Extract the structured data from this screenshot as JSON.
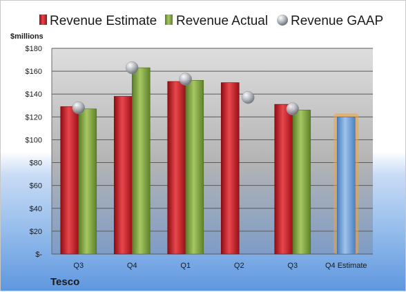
{
  "company": "Tesco",
  "unit_label": "$millions",
  "legend": [
    {
      "label": "Revenue Estimate",
      "color": "#c0171f",
      "icon": "red-square-icon"
    },
    {
      "label": "Revenue Actual",
      "color": "#7ea03c",
      "icon": "green-square-icon"
    },
    {
      "label": "Revenue GAAP",
      "color": "#b8bcc4",
      "icon": "gray-circle-icon"
    }
  ],
  "chart_data": {
    "type": "bar",
    "categories": [
      "Q3",
      "Q4",
      "Q1",
      "Q2",
      "Q3",
      "Q4 Estimate"
    ],
    "series": [
      {
        "name": "Revenue Estimate",
        "values": [
          129,
          138,
          151,
          150,
          131,
          null
        ],
        "color": "#c0171f"
      },
      {
        "name": "Revenue Actual",
        "values": [
          127,
          163,
          152,
          null,
          126,
          null
        ],
        "color": "#7ea03c"
      },
      {
        "name": "Revenue GAAP",
        "values": [
          128,
          163,
          153,
          137,
          127,
          null
        ],
        "color": "#b8bcc4",
        "marker": "circle"
      },
      {
        "name": "Q4 Estimate",
        "values": [
          null,
          null,
          null,
          null,
          null,
          120
        ],
        "color": "#6f9fd8"
      }
    ],
    "yticks": [
      "$-",
      "$20",
      "$40",
      "$60",
      "$80",
      "$100",
      "$120",
      "$140",
      "$160",
      "$180"
    ],
    "ylim": [
      0,
      180
    ],
    "ylabel": "$millions",
    "xlabel": "",
    "grid": true,
    "legend_position": "top"
  }
}
